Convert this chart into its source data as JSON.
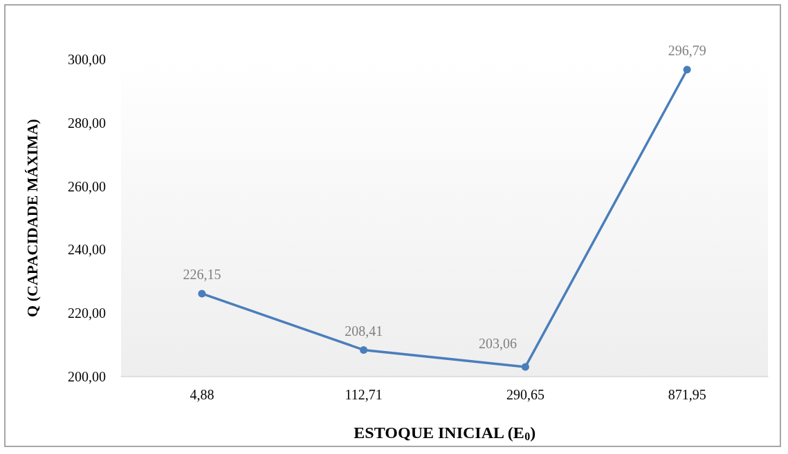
{
  "chart_data": {
    "type": "line",
    "xlabel": "ESTOQUE INICIAL (E$_{0}$)",
    "ylabel": "Q (CAPACIDADE MÁXIMA)",
    "categories": [
      "4,88",
      "112,71",
      "290,65",
      "871,95"
    ],
    "series": [
      {
        "color": "#4a7ebb",
        "values": [
          226.15,
          208.41,
          203.06,
          296.79
        ],
        "value_labels": [
          "226,15",
          "208,41",
          "203,06",
          "296,79"
        ]
      }
    ],
    "ylim": [
      200,
      300
    ],
    "yticks": [
      {
        "value": 200,
        "label": "200,00"
      },
      {
        "value": 220,
        "label": "220,00"
      },
      {
        "value": 240,
        "label": "240,00"
      },
      {
        "value": 260,
        "label": "260,00"
      },
      {
        "value": 280,
        "label": "280,00"
      },
      {
        "value": 300,
        "label": "300,00"
      }
    ],
    "grid": false,
    "marker": "circle",
    "line_style": "solid"
  }
}
